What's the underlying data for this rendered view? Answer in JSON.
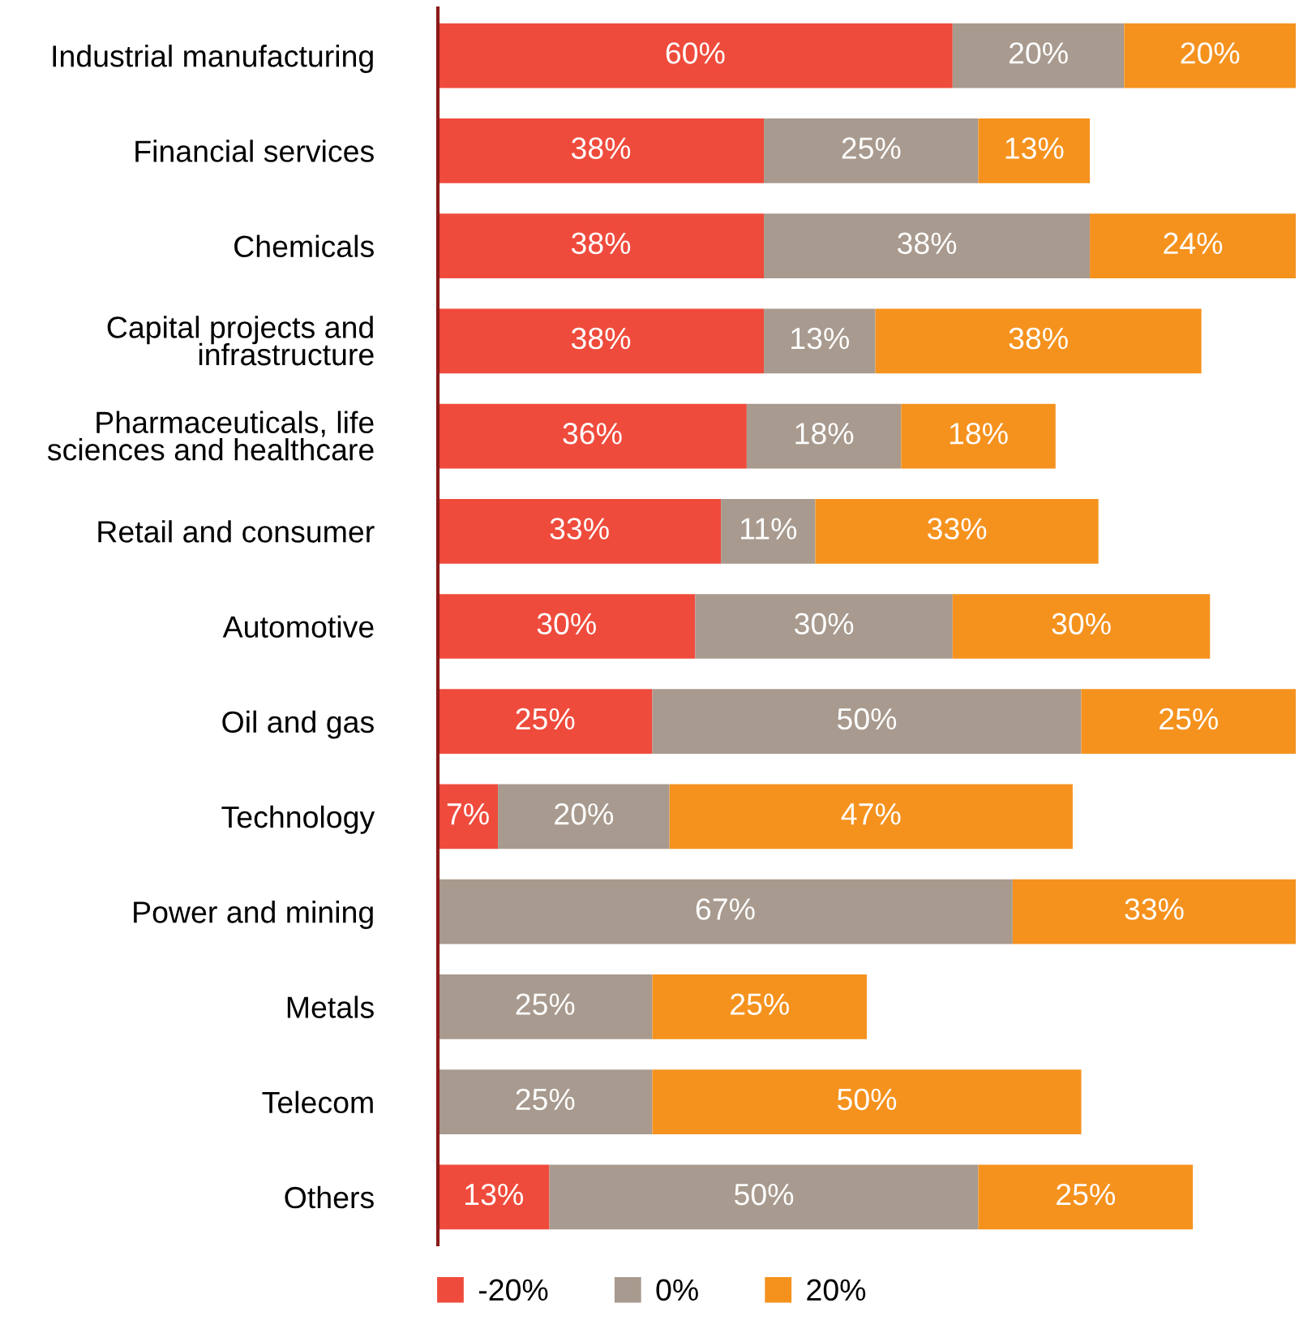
{
  "chart_data": {
    "type": "bar",
    "orientation": "horizontal",
    "stacked": true,
    "legend": "bottom",
    "tick_labels": "y",
    "xlim": [
      0,
      100
    ],
    "categories": [
      "Industrial manufacturing",
      "Financial services",
      "Chemicals",
      "Capital projects and\ninfrastructure",
      "Pharmaceuticals, life\nsciences and healthcare",
      "Retail and consumer",
      "Automotive",
      "Oil and gas",
      "Technology",
      "Power and mining",
      "Metals",
      "Telecom",
      "Others"
    ],
    "series": [
      {
        "name": "-20%",
        "color": "#ef4b3c",
        "values": [
          60,
          38,
          38,
          38,
          36,
          33,
          30,
          25,
          7,
          null,
          null,
          null,
          13
        ],
        "value_labels": [
          "60%",
          "38%",
          "38%",
          "38%",
          "36%",
          "33%",
          "30%",
          "25%",
          "7%",
          null,
          null,
          null,
          "13%"
        ]
      },
      {
        "name": "0%",
        "color": "#a89a8e",
        "values": [
          20,
          25,
          38,
          13,
          18,
          11,
          30,
          50,
          20,
          67,
          25,
          25,
          50
        ],
        "value_labels": [
          "20%",
          "25%",
          "38%",
          "13%",
          "18%",
          "11%",
          "30%",
          "50%",
          "20%",
          "67%",
          "25%",
          "25%",
          "50%"
        ]
      },
      {
        "name": "20%",
        "color": "#f5921e",
        "values": [
          20,
          13,
          24,
          38,
          18,
          33,
          30,
          25,
          47,
          33,
          25,
          50,
          25
        ],
        "value_labels": [
          "20%",
          "13%",
          "24%",
          "38%",
          "18%",
          "33%",
          "30%",
          "25%",
          "47%",
          "33%",
          "25%",
          "50%",
          "25%"
        ]
      }
    ]
  }
}
